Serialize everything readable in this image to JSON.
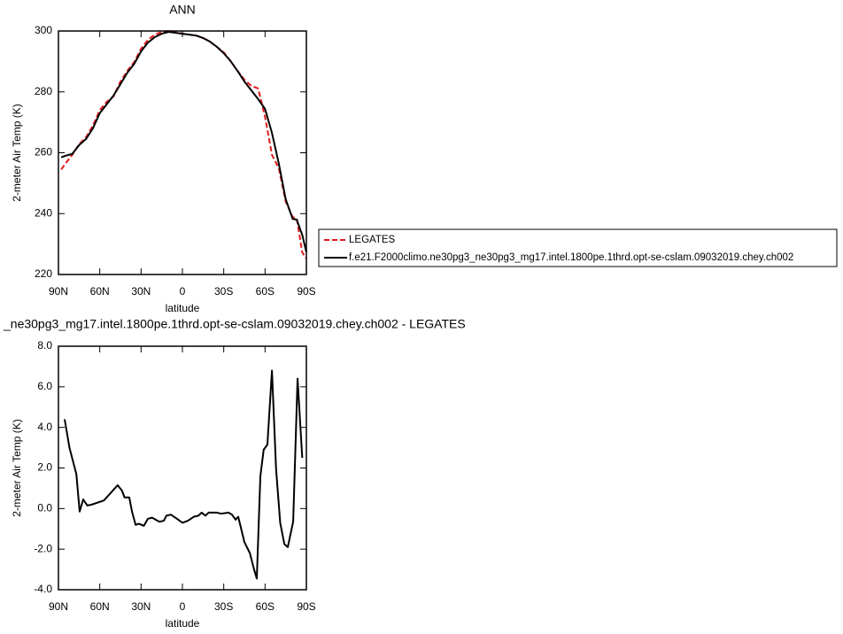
{
  "chart_data": [
    {
      "type": "line",
      "title": "ANN",
      "xlabel": "latitude",
      "ylabel": "2-meter Air Temp (K)",
      "x": [
        88,
        85,
        80,
        75,
        70,
        65,
        60,
        55,
        50,
        45,
        40,
        35,
        30,
        25,
        20,
        15,
        10,
        5,
        0,
        -5,
        -10,
        -15,
        -20,
        -25,
        -30,
        -35,
        -40,
        -45,
        -50,
        -55,
        -60,
        -65,
        -70,
        -75,
        -80,
        -83,
        -87,
        -90
      ],
      "series": [
        {
          "name": "LEGATES",
          "color": "#e41a1c",
          "line_style": "dashed",
          "values": [
            254.5,
            256.4,
            259.3,
            262.8,
            265.1,
            268.9,
            274,
            276.7,
            278.5,
            283.4,
            286.9,
            289.8,
            294.2,
            297.1,
            298.8,
            299.7,
            300,
            299.7,
            299.1,
            298.8,
            298.5,
            297.7,
            296.5,
            294.8,
            293,
            290.1,
            286.9,
            284,
            282,
            281.1,
            271.8,
            259.3,
            254.9,
            243.9,
            238.9,
            238.4,
            227.3,
            225.2
          ]
        },
        {
          "name": "f.e21.F2000climo.ne30pg3_ne30pg3_mg17.intel.1800pe.1thrd.opt-se-cslam.09032019.chey.ch002",
          "color": "#000000",
          "line_style": "solid",
          "values": [
            258.5,
            259,
            259.6,
            262.5,
            264.5,
            268,
            273,
            275.9,
            278.8,
            282.5,
            286.3,
            289.2,
            293.3,
            296.2,
            298,
            299.1,
            299.7,
            299.4,
            299.1,
            298.8,
            298.5,
            297.7,
            296.5,
            294.8,
            292.7,
            290.1,
            286.9,
            283.4,
            280.5,
            277.6,
            274.4,
            266.5,
            256.4,
            244.7,
            238.3,
            238,
            233,
            227.3
          ]
        }
      ],
      "xlim": [
        90,
        -90
      ],
      "xticks": [
        {
          "value": 90,
          "label": "90N"
        },
        {
          "value": 60,
          "label": "60N"
        },
        {
          "value": 30,
          "label": "30N"
        },
        0,
        {
          "value": -30,
          "label": "30S"
        },
        {
          "value": -60,
          "label": "60S"
        },
        {
          "value": -90,
          "label": "90S"
        }
      ],
      "ylim": [
        220,
        300
      ],
      "yticks": [
        220,
        240,
        260,
        280,
        300
      ],
      "legend_position": "right"
    },
    {
      "type": "line",
      "title": "_ne30pg3_mg17.intel.1800pe.1thrd.opt-se-cslam.09032019.chey.ch002 - LEGATES",
      "xlabel": "latitude",
      "ylabel": "2-meter Air Temp (K)",
      "x": [
        85.5,
        82,
        77,
        74.6,
        72,
        69,
        65.6,
        57,
        47,
        44,
        42,
        38.6,
        36.6,
        34,
        31.5,
        28,
        25,
        22,
        16.7,
        13.5,
        11.6,
        8.4,
        4,
        0,
        -4,
        -8.4,
        -11.6,
        -14,
        -16.7,
        -19,
        -25,
        -28,
        -33.4,
        -36,
        -38.6,
        -40.5,
        -45,
        -49,
        -52,
        -54,
        -56.6,
        -59,
        -61.7,
        -65,
        -68,
        -71,
        -74,
        -76.5,
        -80.4,
        -83.6,
        -87
      ],
      "values": [
        4.4,
        3.0,
        1.7,
        -0.15,
        0.45,
        0.15,
        0.2,
        0.4,
        1.15,
        0.9,
        0.55,
        0.55,
        -0.15,
        -0.8,
        -0.75,
        -0.85,
        -0.5,
        -0.45,
        -0.65,
        -0.6,
        -0.35,
        -0.3,
        -0.5,
        -0.7,
        -0.6,
        -0.4,
        -0.35,
        -0.2,
        -0.35,
        -0.2,
        -0.2,
        -0.25,
        -0.2,
        -0.3,
        -0.55,
        -0.4,
        -1.65,
        -2.2,
        -3.0,
        -3.45,
        1.6,
        2.9,
        3.15,
        6.8,
        1.95,
        -0.7,
        -1.75,
        -1.9,
        -0.65,
        6.4,
        2.5
      ],
      "color": "#000000",
      "xlim": [
        90,
        -90
      ],
      "xticks": [
        {
          "value": 90,
          "label": "90N"
        },
        {
          "value": 60,
          "label": "60N"
        },
        {
          "value": 30,
          "label": "30N"
        },
        0,
        {
          "value": -30,
          "label": "30S"
        },
        {
          "value": -60,
          "label": "60S"
        },
        {
          "value": -90,
          "label": "90S"
        }
      ],
      "ylim": [
        -4,
        8
      ],
      "yticks": [
        {
          "value": -4,
          "label": "-4.0"
        },
        {
          "value": -2,
          "label": "-2.0"
        },
        {
          "value": 0,
          "label": "0.0"
        },
        {
          "value": 2,
          "label": "2.0"
        },
        {
          "value": 4,
          "label": "4.0"
        },
        {
          "value": 6,
          "label": "6.0"
        },
        {
          "value": 8,
          "label": "8.0"
        }
      ]
    }
  ]
}
